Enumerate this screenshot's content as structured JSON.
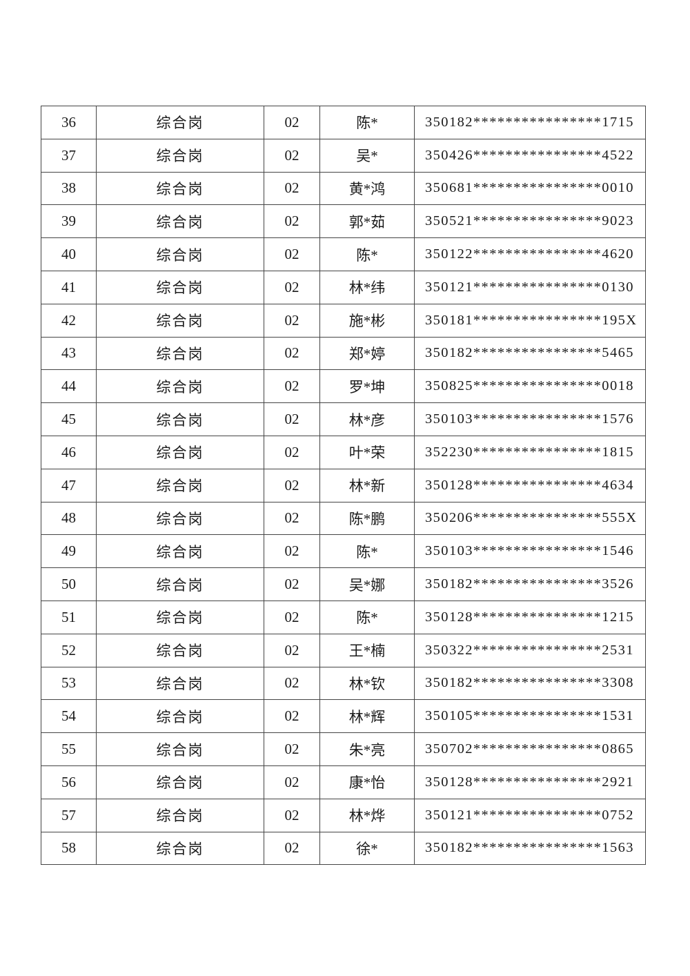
{
  "table": {
    "rows": [
      {
        "no": "36",
        "post": "综合岗",
        "code": "02",
        "name": "陈*",
        "id": "350182****************1715"
      },
      {
        "no": "37",
        "post": "综合岗",
        "code": "02",
        "name": "吴*",
        "id": "350426****************4522"
      },
      {
        "no": "38",
        "post": "综合岗",
        "code": "02",
        "name": "黄*鸿",
        "id": "350681****************0010"
      },
      {
        "no": "39",
        "post": "综合岗",
        "code": "02",
        "name": "郭*茹",
        "id": "350521****************9023"
      },
      {
        "no": "40",
        "post": "综合岗",
        "code": "02",
        "name": "陈*",
        "id": "350122****************4620"
      },
      {
        "no": "41",
        "post": "综合岗",
        "code": "02",
        "name": "林*纬",
        "id": "350121****************0130"
      },
      {
        "no": "42",
        "post": "综合岗",
        "code": "02",
        "name": "施*彬",
        "id": "350181****************195X"
      },
      {
        "no": "43",
        "post": "综合岗",
        "code": "02",
        "name": "郑*婷",
        "id": "350182****************5465"
      },
      {
        "no": "44",
        "post": "综合岗",
        "code": "02",
        "name": "罗*坤",
        "id": "350825****************0018"
      },
      {
        "no": "45",
        "post": "综合岗",
        "code": "02",
        "name": "林*彦",
        "id": "350103****************1576"
      },
      {
        "no": "46",
        "post": "综合岗",
        "code": "02",
        "name": "叶*荣",
        "id": "352230****************1815"
      },
      {
        "no": "47",
        "post": "综合岗",
        "code": "02",
        "name": "林*新",
        "id": "350128****************4634"
      },
      {
        "no": "48",
        "post": "综合岗",
        "code": "02",
        "name": "陈*鹏",
        "id": "350206****************555X"
      },
      {
        "no": "49",
        "post": "综合岗",
        "code": "02",
        "name": "陈*",
        "id": "350103****************1546"
      },
      {
        "no": "50",
        "post": "综合岗",
        "code": "02",
        "name": "吴*娜",
        "id": "350182****************3526"
      },
      {
        "no": "51",
        "post": "综合岗",
        "code": "02",
        "name": "陈*",
        "id": "350128****************1215"
      },
      {
        "no": "52",
        "post": "综合岗",
        "code": "02",
        "name": "王*楠",
        "id": "350322****************2531"
      },
      {
        "no": "53",
        "post": "综合岗",
        "code": "02",
        "name": "林*钦",
        "id": "350182****************3308"
      },
      {
        "no": "54",
        "post": "综合岗",
        "code": "02",
        "name": "林*辉",
        "id": "350105****************1531"
      },
      {
        "no": "55",
        "post": "综合岗",
        "code": "02",
        "name": "朱*亮",
        "id": "350702****************0865"
      },
      {
        "no": "56",
        "post": "综合岗",
        "code": "02",
        "name": "康*怡",
        "id": "350128****************2921"
      },
      {
        "no": "57",
        "post": "综合岗",
        "code": "02",
        "name": "林*烨",
        "id": "350121****************0752"
      },
      {
        "no": "58",
        "post": "综合岗",
        "code": "02",
        "name": "徐*",
        "id": "350182****************1563"
      }
    ]
  }
}
